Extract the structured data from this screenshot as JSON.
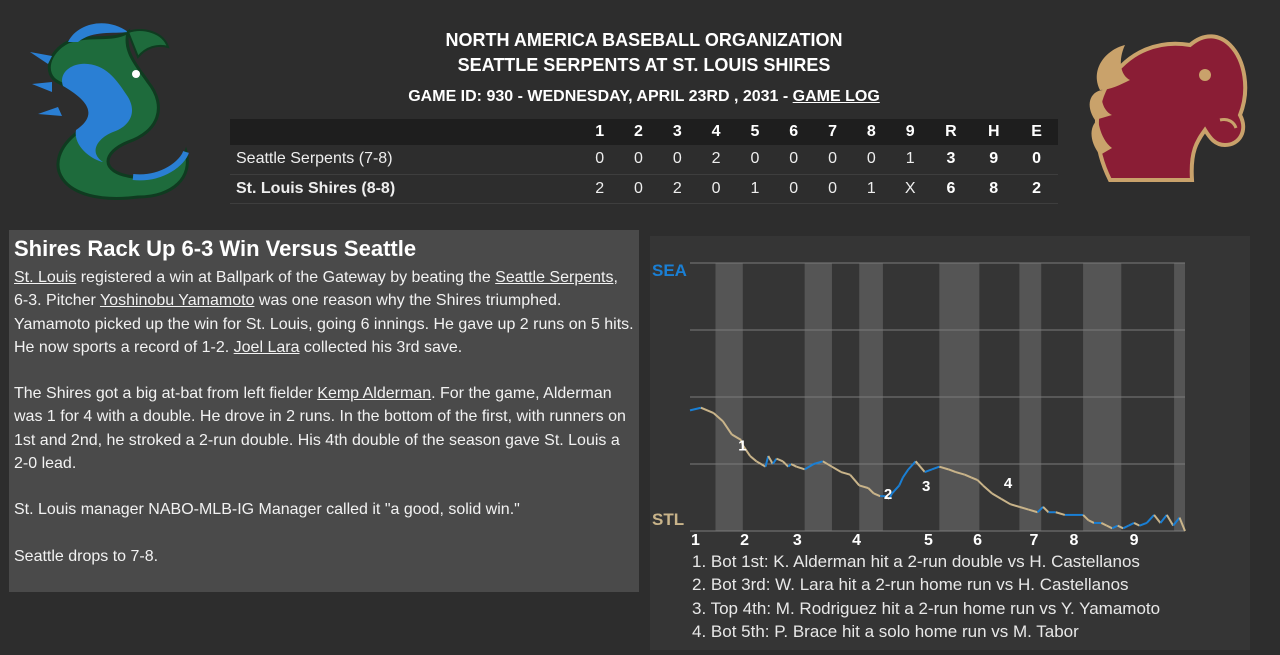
{
  "header": {
    "league": "NORTH AMERICA BASEBALL ORGANIZATION",
    "matchup": "SEATTLE SERPENTS AT ST. LOUIS SHIRES",
    "game_info": "GAME ID: 930 - WEDNESDAY, APRIL 23RD , 2031 -",
    "game_log_link": "GAME LOG"
  },
  "linescore": {
    "innings": [
      "1",
      "2",
      "3",
      "4",
      "5",
      "6",
      "7",
      "8",
      "9"
    ],
    "totals_headers": [
      "R",
      "H",
      "E"
    ],
    "away": {
      "team": "Seattle Serpents (7-8)",
      "innings": [
        "0",
        "0",
        "0",
        "2",
        "0",
        "0",
        "0",
        "0",
        "1"
      ],
      "totals": [
        "3",
        "9",
        "0"
      ]
    },
    "home": {
      "team": "St. Louis Shires (8-8)",
      "innings": [
        "2",
        "0",
        "2",
        "0",
        "1",
        "0",
        "0",
        "1",
        "X"
      ],
      "totals": [
        "6",
        "8",
        "2"
      ]
    }
  },
  "story": {
    "headline": "Shires Rack Up 6-3 Win Versus Seattle",
    "p1": {
      "link_stl": "St. Louis",
      "t1": " registered a win at Ballpark of the Gateway by beating the ",
      "link_sea": "Seattle Serpents",
      "t2": ", 6-3. Pitcher ",
      "link_yamamoto": "Yoshinobu Yamamoto",
      "t3": " was one reason why the Shires triumphed. Yamamoto picked up the win for St. Louis, going 6 innings. He gave up 2 runs on 5 hits. He now sports a record of 1-2. ",
      "link_lara": "Joel Lara",
      "t4": " collected his 3rd save."
    },
    "p2": {
      "t1": "The Shires got a big at-bat from left fielder ",
      "link_alderman": "Kemp Alderman",
      "t2": ". For the game, Alderman was 1 for 4 with a double. He drove in 2 runs. In the bottom of the first, with runners on 1st and 2nd, he stroked a 2-run double. His 4th double of the season gave St. Louis a 2-0 lead."
    },
    "p3": "St. Louis manager NABO-MLB-IG Manager called it \"a good, solid win.\"",
    "p4": "Seattle drops to 7-8."
  },
  "chart_data": {
    "type": "line",
    "y_top_label": "SEA",
    "y_bottom_label": "STL",
    "innings": [
      "1",
      "2",
      "3",
      "4",
      "5",
      "6",
      "7",
      "8",
      "9"
    ],
    "ylim": [
      0,
      100
    ],
    "colors": {
      "sea": "#1a7fd4",
      "stl": "#c9b48a"
    },
    "points": [
      [
        0,
        45
      ],
      [
        1.2,
        46
      ],
      [
        2.6,
        44
      ],
      [
        3.6,
        41
      ],
      [
        4.6,
        36
      ],
      [
        5.6,
        34
      ],
      [
        5.8,
        32
      ],
      [
        6.6,
        28
      ],
      [
        7.3,
        26
      ],
      [
        8.3,
        24
      ],
      [
        8.6,
        28
      ],
      [
        9.1,
        25
      ],
      [
        9.5,
        27
      ],
      [
        10.2,
        26
      ],
      [
        10.8,
        24
      ],
      [
        11.1,
        25
      ],
      [
        11.7,
        24
      ],
      [
        12.6,
        23
      ],
      [
        13.6,
        25
      ],
      [
        14.6,
        26
      ],
      [
        15.6,
        24
      ],
      [
        16.6,
        22
      ],
      [
        17.6,
        21
      ],
      [
        18.6,
        17
      ],
      [
        19.6,
        16
      ],
      [
        20.2,
        14
      ],
      [
        20.9,
        13
      ],
      [
        21.5,
        13
      ],
      [
        21.9,
        12
      ],
      [
        22.2,
        14
      ],
      [
        23.0,
        17
      ],
      [
        23.4,
        20
      ],
      [
        24.0,
        23
      ],
      [
        24.8,
        26
      ],
      [
        25.8,
        22
      ],
      [
        26.6,
        23
      ],
      [
        27.4,
        24
      ],
      [
        28.4,
        23
      ],
      [
        29.2,
        22
      ],
      [
        30.2,
        21
      ],
      [
        30.9,
        20
      ],
      [
        31.6,
        19
      ],
      [
        32.2,
        17
      ],
      [
        33.2,
        14
      ],
      [
        34.2,
        12
      ],
      [
        35.2,
        10
      ],
      [
        36.2,
        9
      ],
      [
        37.2,
        8
      ],
      [
        38.2,
        7
      ],
      [
        38.8,
        9
      ],
      [
        39.4,
        7
      ],
      [
        40.2,
        7
      ],
      [
        41.2,
        6
      ],
      [
        42.2,
        6
      ],
      [
        43.2,
        6
      ],
      [
        43.8,
        4
      ],
      [
        44.4,
        3
      ],
      [
        45.2,
        3
      ],
      [
        45.8,
        2
      ],
      [
        46.4,
        1
      ],
      [
        47.0,
        2
      ],
      [
        47.6,
        1
      ],
      [
        48.2,
        2
      ],
      [
        48.8,
        3
      ],
      [
        49.4,
        2
      ],
      [
        50.2,
        3
      ],
      [
        51.0,
        6
      ],
      [
        51.7,
        3
      ],
      [
        52.4,
        6
      ],
      [
        53.1,
        2
      ],
      [
        53.8,
        5
      ],
      [
        54.4,
        0
      ]
    ],
    "markers": [
      {
        "label": "1",
        "x": 5.3,
        "y": 30
      },
      {
        "label": "2",
        "x": 21.3,
        "y": 12
      },
      {
        "label": "3",
        "x": 25.5,
        "y": 15
      },
      {
        "label": "4",
        "x": 34.5,
        "y": 16
      }
    ],
    "legend": [
      "1. Bot 1st: K. Alderman hit a 2-run double vs H. Castellanos",
      "2. Bot 3rd: W. Lara hit a 2-run home run vs H. Castellanos",
      "3. Top 4th: M. Rodriguez hit a 2-run home run vs Y. Yamamoto",
      "4. Bot 5th: P. Brace hit a solo home run vs M. Tabor"
    ]
  }
}
